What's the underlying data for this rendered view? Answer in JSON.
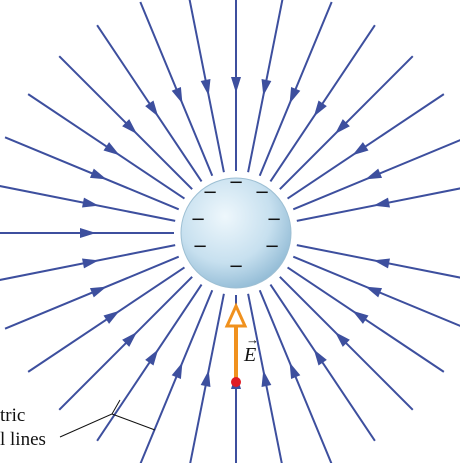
{
  "diagram": {
    "line_count": 32,
    "line_direction": "inward",
    "sphere_charge_symbol": "−",
    "charge_count": 8,
    "vector_symbol": "E",
    "caption_line1": "tric",
    "caption_line2": "l lines"
  },
  "colors": {
    "field_line": "#3d4f9e",
    "sphere_light": "#e9f4fb",
    "sphere_dark": "#8fb9d4",
    "vector": "#f0911e",
    "test_charge": "#e01b24"
  }
}
